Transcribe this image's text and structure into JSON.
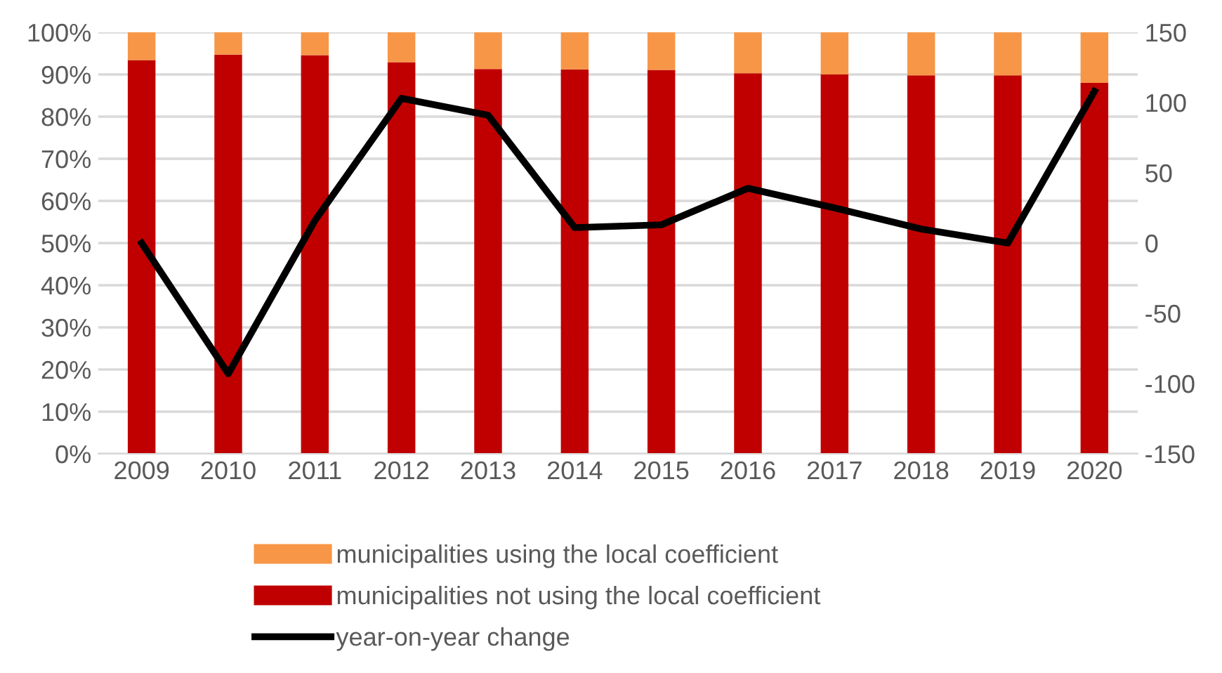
{
  "chart_data": {
    "type": "bar",
    "stacked": true,
    "categories": [
      "2009",
      "2010",
      "2011",
      "2012",
      "2013",
      "2014",
      "2015",
      "2016",
      "2017",
      "2018",
      "2019",
      "2020"
    ],
    "series": [
      {
        "name": "municipalities not using the local coefficient",
        "color": "#c00000",
        "values": [
          93.4,
          94.7,
          94.6,
          92.9,
          91.3,
          91.2,
          91.1,
          90.3,
          90.0,
          89.8,
          89.8,
          88.0
        ]
      },
      {
        "name": "municipalities using the local coefficient",
        "color": "#f79646",
        "values": [
          6.6,
          5.3,
          5.4,
          7.1,
          8.7,
          8.8,
          8.9,
          9.7,
          10.0,
          10.2,
          10.2,
          12.0
        ]
      },
      {
        "name": "year-on-year change",
        "type": "line",
        "axis": "y2",
        "color": "#000000",
        "values": [
          0,
          -93,
          16,
          103,
          91,
          11,
          13,
          39,
          25,
          10,
          0,
          108
        ]
      }
    ],
    "ylim": [
      0,
      100
    ],
    "yticks": [
      {
        "value": 0,
        "label": "0%"
      },
      {
        "value": 10,
        "label": "10%"
      },
      {
        "value": 20,
        "label": "20%"
      },
      {
        "value": 30,
        "label": "30%"
      },
      {
        "value": 40,
        "label": "40%"
      },
      {
        "value": 50,
        "label": "50%"
      },
      {
        "value": 60,
        "label": "60%"
      },
      {
        "value": 70,
        "label": "70%"
      },
      {
        "value": 80,
        "label": "80%"
      },
      {
        "value": 90,
        "label": "90%"
      },
      {
        "value": 100,
        "label": "100%"
      }
    ],
    "y2lim": [
      -150,
      150
    ],
    "y2ticks": [
      -150,
      -100,
      -50,
      0,
      50,
      100,
      150
    ],
    "grid": "y",
    "legend": "bottom"
  }
}
